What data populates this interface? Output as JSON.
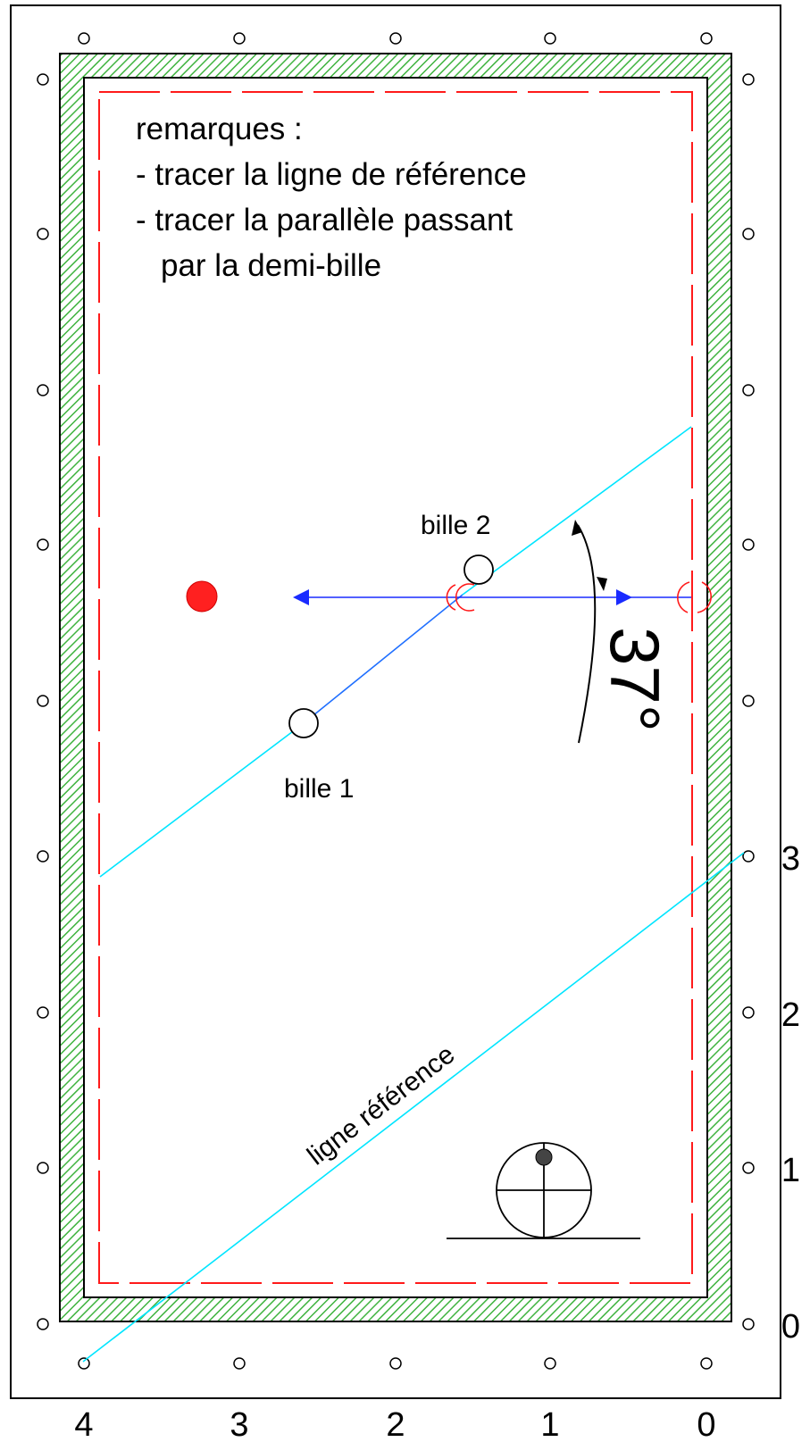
{
  "remarks": {
    "title": "remarques :",
    "line1": "- tracer la ligne de référence",
    "line2": "- tracer la parallèle passant",
    "line3": "par la demi-bille"
  },
  "balls": {
    "ball1_label": "bille 1",
    "ball2_label": "bille 2"
  },
  "angle_label": "37°",
  "reference_line_label": "ligne référence",
  "diamond_numbers": {
    "bottom": [
      "4",
      "3",
      "2",
      "1",
      "0"
    ],
    "right": [
      "3",
      "2",
      "1",
      "0"
    ]
  },
  "colors": {
    "cushion_hatch": "#3fb33f",
    "reference_lines": "#00e5ff",
    "shot_arrow": "#1a2bff",
    "frame_dash": "#ff1a1a",
    "red_ball": "#ff2020"
  }
}
